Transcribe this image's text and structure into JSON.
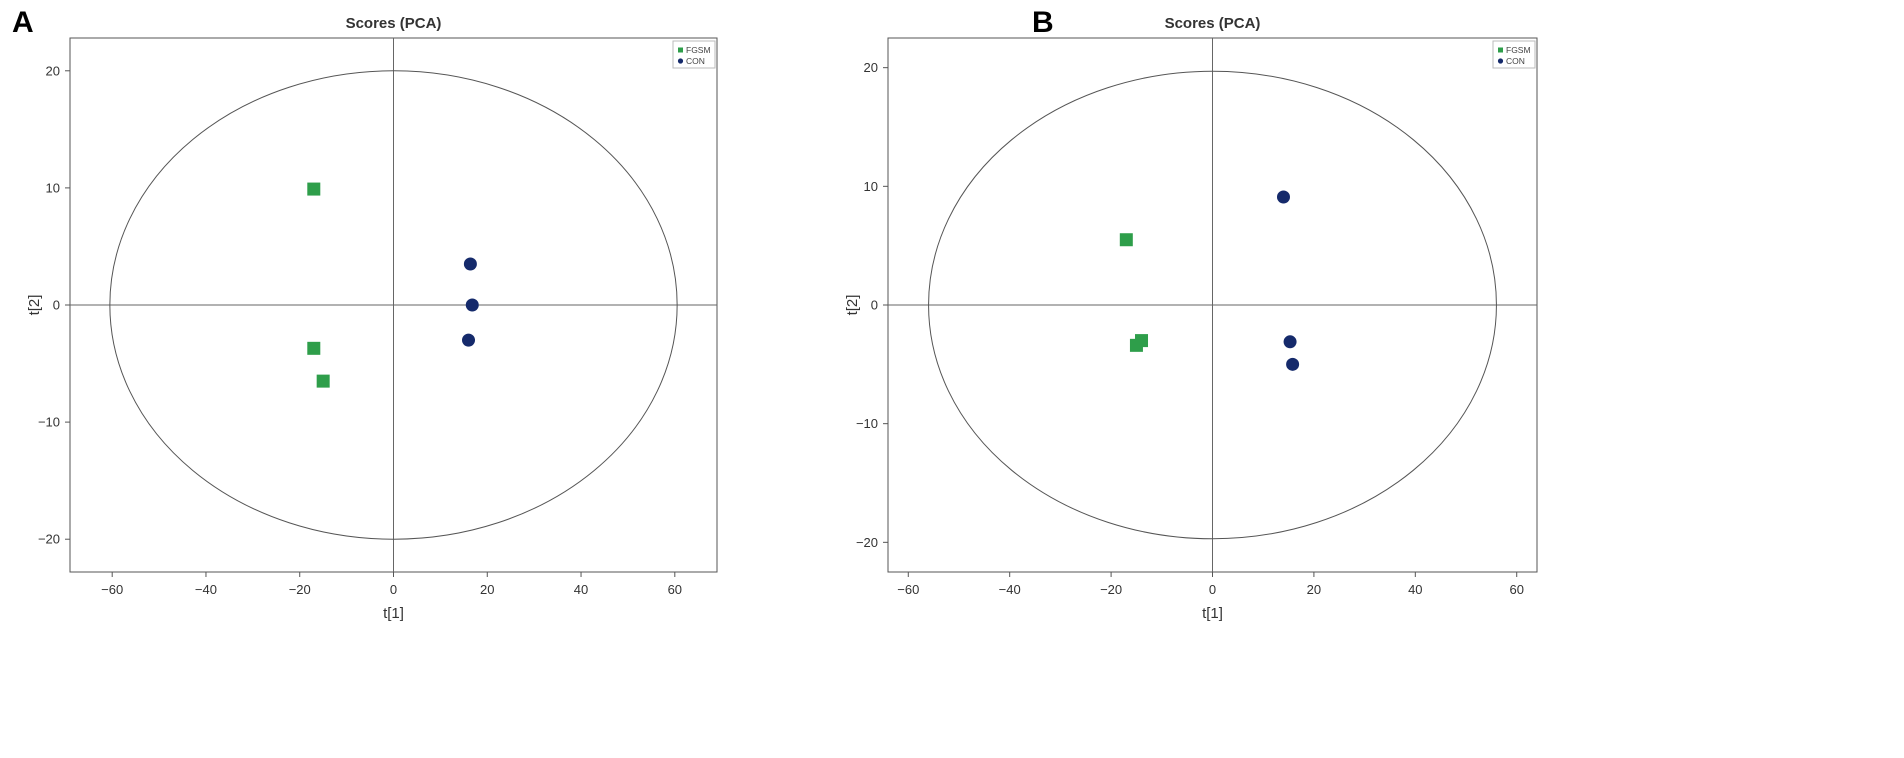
{
  "chart_data": [
    {
      "panel_label": "A",
      "type": "scatter",
      "title": "Scores (PCA)",
      "xlabel": "t[1]",
      "ylabel": "t[2]",
      "xlim": [
        -69,
        69
      ],
      "ylim": [
        -22.8,
        22.8
      ],
      "xticks": [
        -60,
        -40,
        -20,
        0,
        20,
        40,
        60
      ],
      "yticks": [
        -20,
        -10,
        0,
        10,
        20
      ],
      "xtick_labels": [
        "−60",
        "−40",
        "−20",
        "0",
        "20",
        "40",
        "60"
      ],
      "ytick_labels": [
        "−20",
        "−10",
        "0",
        "10",
        "20"
      ],
      "ellipse": {
        "rx": 60.5,
        "ry": 20.0
      },
      "grid": false,
      "legend_position": "top-right",
      "series": [
        {
          "name": "FGSM",
          "marker": "square",
          "color": "#2e9e4a",
          "points": [
            [
              -17,
              9.9
            ],
            [
              -17,
              -3.7
            ],
            [
              -15,
              -6.5
            ]
          ]
        },
        {
          "name": "CON",
          "marker": "circle",
          "color": "#152a6b",
          "points": [
            [
              16.4,
              3.5
            ],
            [
              16.8,
              0.0
            ],
            [
              16.0,
              -3.0
            ]
          ]
        }
      ]
    },
    {
      "panel_label": "B",
      "type": "scatter",
      "title": "Scores (PCA)",
      "xlabel": "t[1]",
      "ylabel": "t[2]",
      "xlim": [
        -64,
        64
      ],
      "ylim": [
        -22.5,
        22.5
      ],
      "xticks": [
        -60,
        -40,
        -20,
        0,
        20,
        40,
        60
      ],
      "yticks": [
        -20,
        -10,
        0,
        10,
        20
      ],
      "xtick_labels": [
        "−60",
        "−40",
        "−20",
        "0",
        "20",
        "40",
        "60"
      ],
      "ytick_labels": [
        "−20",
        "−10",
        "0",
        "10",
        "20"
      ],
      "ellipse": {
        "rx": 56.0,
        "ry": 19.7
      },
      "grid": false,
      "legend_position": "top-right",
      "series": [
        {
          "name": "FGSM",
          "marker": "square",
          "color": "#2e9e4a",
          "points": [
            [
              -17,
              5.5
            ],
            [
              -15,
              -3.4
            ],
            [
              -14,
              -3.0
            ]
          ]
        },
        {
          "name": "CON",
          "marker": "circle",
          "color": "#152a6b",
          "points": [
            [
              14,
              9.1
            ],
            [
              15.3,
              -3.1
            ],
            [
              15.8,
              -5.0
            ]
          ]
        }
      ]
    }
  ]
}
